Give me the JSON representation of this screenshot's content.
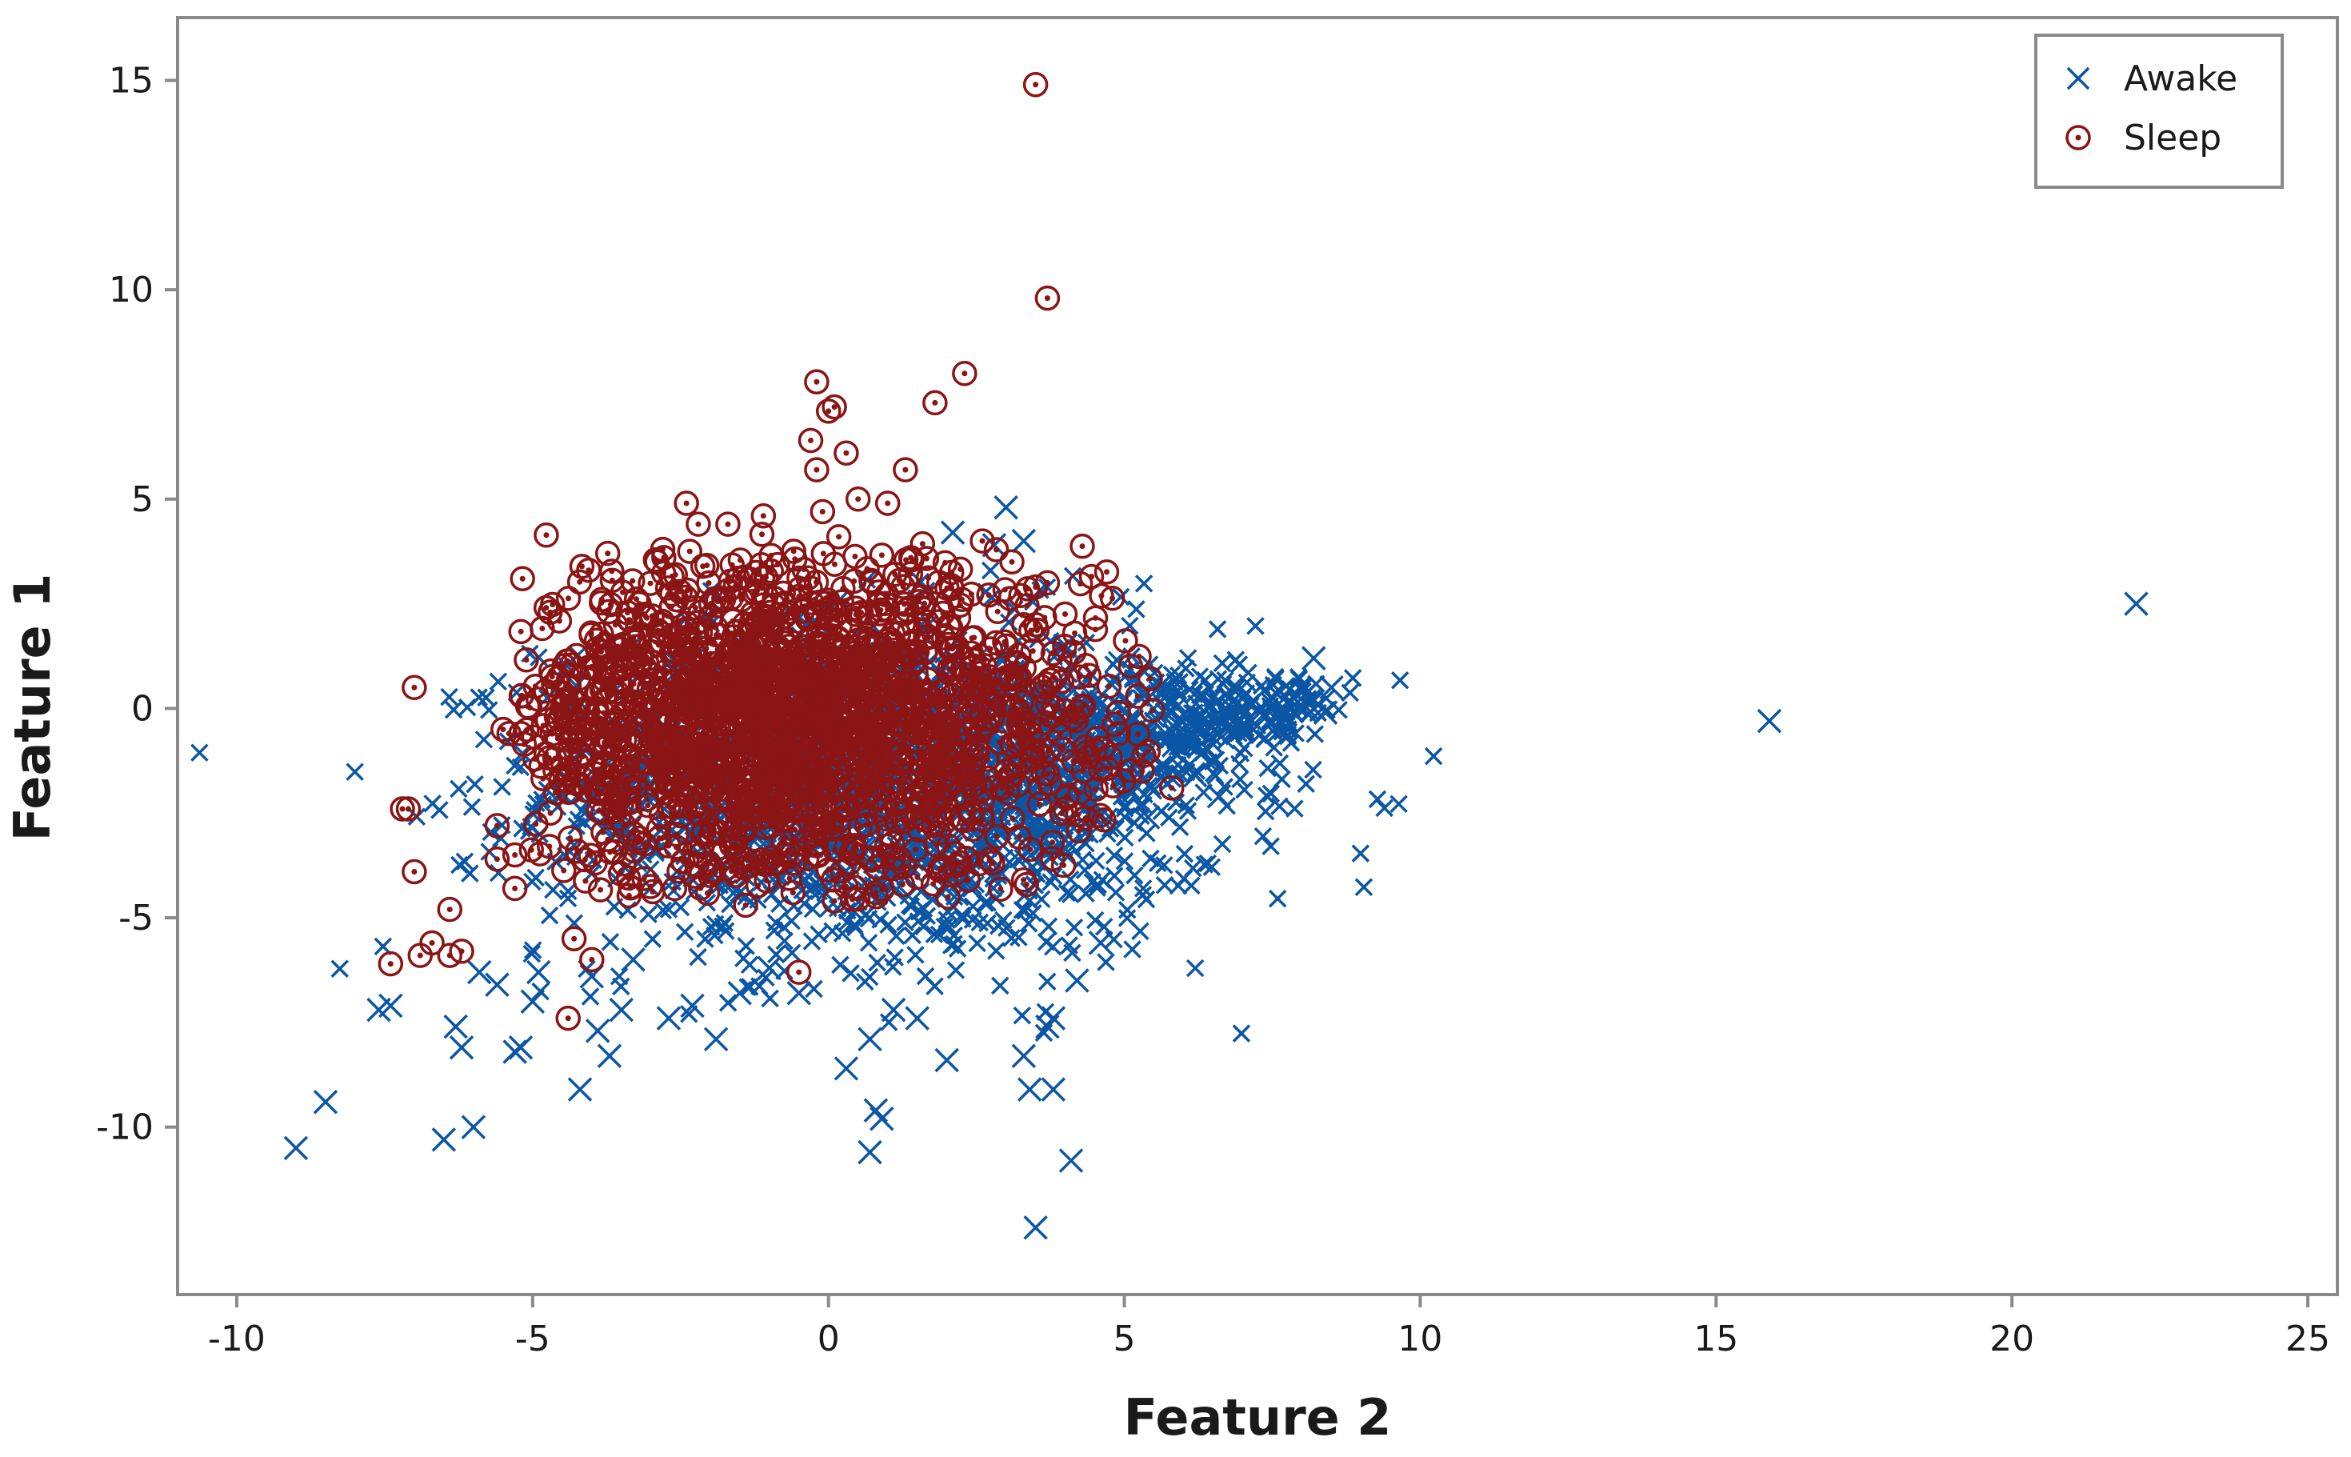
{
  "chart_data": {
    "type": "scatter",
    "xlabel": "Feature 2",
    "ylabel": "Feature 1",
    "xlim": [
      -11,
      25.5
    ],
    "ylim": [
      -14,
      16.5
    ],
    "x_ticks": [
      -10,
      -5,
      0,
      5,
      10,
      15,
      20,
      25
    ],
    "y_ticks": [
      -10,
      -5,
      0,
      5,
      10,
      15
    ],
    "grid": false,
    "legend_position": "top-right",
    "series": [
      {
        "name": "Awake",
        "marker": "x",
        "color": "#0b56a4",
        "dense_region": {
          "x_center": 1.0,
          "y_center": -2.0,
          "x_spread": 3.2,
          "y_spread": 2.0,
          "count": 1600
        },
        "dense_tail": {
          "x_from": 3.0,
          "y_from": -1.5,
          "x_to": 8.0,
          "y_to": 0.3,
          "count": 420
        },
        "points": [
          [
            22.1,
            2.5
          ],
          [
            15.9,
            -0.3
          ],
          [
            -9.0,
            -10.5
          ],
          [
            -8.5,
            -9.4
          ],
          [
            -7.6,
            -7.2
          ],
          [
            -7.4,
            -7.1
          ],
          [
            -6.5,
            -10.3
          ],
          [
            -6.0,
            -10.0
          ],
          [
            -6.3,
            -7.6
          ],
          [
            -6.2,
            -8.1
          ],
          [
            -5.9,
            -6.3
          ],
          [
            -5.6,
            -6.6
          ],
          [
            -5.3,
            -8.2
          ],
          [
            -5.2,
            -8.1
          ],
          [
            -5.0,
            -7.0
          ],
          [
            -4.9,
            -6.3
          ],
          [
            -4.2,
            -9.1
          ],
          [
            -4.0,
            -6.4
          ],
          [
            -3.9,
            -7.7
          ],
          [
            -3.7,
            -8.3
          ],
          [
            -3.5,
            -7.2
          ],
          [
            -3.3,
            -6.0
          ],
          [
            -2.7,
            -7.4
          ],
          [
            -2.3,
            -7.1
          ],
          [
            -1.9,
            -7.9
          ],
          [
            -1.5,
            -6.8
          ],
          [
            -1.0,
            -6.2
          ],
          [
            -0.5,
            -6.8
          ],
          [
            0.3,
            -8.6
          ],
          [
            0.7,
            -10.6
          ],
          [
            0.8,
            -9.6
          ],
          [
            0.9,
            -9.8
          ],
          [
            0.7,
            -7.9
          ],
          [
            1.1,
            -7.2
          ],
          [
            1.5,
            -7.4
          ],
          [
            2.0,
            -8.4
          ],
          [
            3.3,
            -8.3
          ],
          [
            3.4,
            -9.1
          ],
          [
            3.5,
            -12.4
          ],
          [
            3.8,
            -9.1
          ],
          [
            3.7,
            -7.6
          ],
          [
            3.8,
            -7.4
          ],
          [
            4.1,
            -10.8
          ],
          [
            4.2,
            -6.5
          ],
          [
            4.6,
            -5.6
          ],
          [
            4.0,
            1.5
          ],
          [
            4.1,
            1.0
          ],
          [
            3.0,
            4.8
          ],
          [
            3.3,
            4.0
          ],
          [
            2.8,
            3.9
          ],
          [
            2.1,
            4.2
          ],
          [
            8.2,
            1.2
          ],
          [
            8.5,
            0.5
          ],
          [
            8.4,
            -0.1
          ],
          [
            8.2,
            0.0
          ],
          [
            6.6,
            -2.1
          ],
          [
            6.2,
            -1.6
          ],
          [
            5.4,
            -2.6
          ],
          [
            5.9,
            -1.1
          ],
          [
            7.0,
            -0.4
          ]
        ]
      },
      {
        "name": "Sleep",
        "marker": "circle-dot",
        "color": "#8b1414",
        "dense_region": {
          "x_center": -0.7,
          "y_center": -0.4,
          "x_spread": 2.6,
          "y_spread": 1.9,
          "count": 1900
        },
        "points": [
          [
            3.5,
            14.9
          ],
          [
            3.7,
            9.8
          ],
          [
            2.3,
            8.0
          ],
          [
            1.8,
            7.3
          ],
          [
            -0.2,
            7.8
          ],
          [
            0.1,
            7.2
          ],
          [
            0.0,
            7.1
          ],
          [
            -0.3,
            6.4
          ],
          [
            0.3,
            6.1
          ],
          [
            -0.2,
            5.7
          ],
          [
            1.3,
            5.7
          ],
          [
            -2.4,
            4.9
          ],
          [
            0.5,
            5.0
          ],
          [
            1.0,
            4.9
          ],
          [
            -0.1,
            4.7
          ],
          [
            -1.7,
            4.4
          ],
          [
            -1.1,
            4.6
          ],
          [
            -2.2,
            4.4
          ],
          [
            2.6,
            4.0
          ],
          [
            3.1,
            3.5
          ],
          [
            3.7,
            3.0
          ],
          [
            3.5,
            2.9
          ],
          [
            3.3,
            2.0
          ],
          [
            3.5,
            2.0
          ],
          [
            -7.0,
            0.5
          ],
          [
            -7.1,
            -2.4
          ],
          [
            -7.2,
            -2.4
          ],
          [
            -7.0,
            -3.9
          ],
          [
            -7.4,
            -6.1
          ],
          [
            -6.9,
            -5.9
          ],
          [
            -6.7,
            -5.6
          ],
          [
            -6.4,
            -5.9
          ],
          [
            -6.4,
            -4.8
          ],
          [
            -6.2,
            -5.8
          ],
          [
            -5.6,
            -2.8
          ],
          [
            -5.6,
            -3.6
          ],
          [
            -5.3,
            -3.5
          ],
          [
            -5.3,
            -4.3
          ],
          [
            -5.4,
            -0.6
          ],
          [
            -5.2,
            -0.6
          ],
          [
            -5.5,
            -0.5
          ],
          [
            -4.6,
            -0.2
          ],
          [
            -4.4,
            -7.4
          ],
          [
            -4.3,
            -5.5
          ],
          [
            -4.0,
            -6.0
          ],
          [
            -4.7,
            -2.5
          ],
          [
            -4.4,
            0.5
          ],
          [
            -4.0,
            1.0
          ],
          [
            -3.8,
            1.5
          ],
          [
            -3.6,
            2.0
          ],
          [
            -3.2,
            2.5
          ],
          [
            -2.9,
            3.5
          ],
          [
            -2.8,
            3.8
          ],
          [
            -0.5,
            -6.3
          ],
          [
            -2.6,
            -4.3
          ],
          [
            -1.4,
            -4.7
          ],
          [
            -0.6,
            -4.4
          ],
          [
            0.1,
            -4.6
          ],
          [
            0.8,
            -4.4
          ],
          [
            4.9,
            -0.1
          ],
          [
            4.9,
            -0.6
          ],
          [
            5.3,
            -1.5
          ],
          [
            5.8,
            -1.9
          ],
          [
            4.5,
            -1.0
          ],
          [
            3.9,
            -0.3
          ]
        ]
      }
    ]
  }
}
